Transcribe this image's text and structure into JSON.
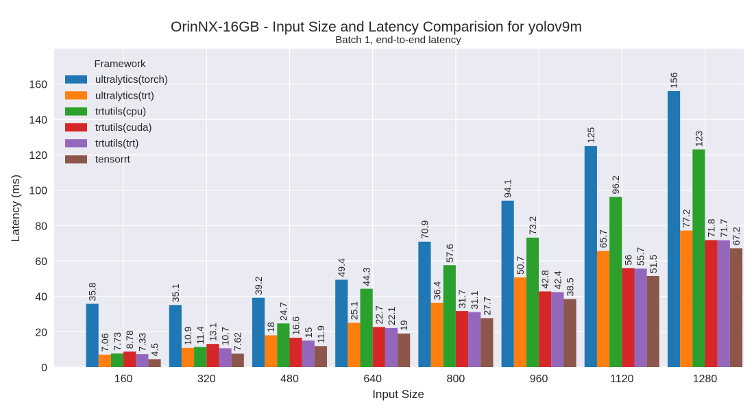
{
  "chart_data": {
    "type": "bar",
    "title": "OrinNX-16GB - Input Size and Latency Comparision for yolov9m",
    "subtitle": "Batch 1, end-to-end latency",
    "xlabel": "Input Size",
    "ylabel": "Latency (ms)",
    "ylim": [
      0,
      180
    ],
    "yticks": [
      0,
      20,
      40,
      60,
      80,
      100,
      120,
      140,
      160
    ],
    "grid": true,
    "legend": {
      "title": "Framework",
      "placement": "top-left"
    },
    "categories": [
      "160",
      "320",
      "480",
      "640",
      "800",
      "960",
      "1120",
      "1280"
    ],
    "series": [
      {
        "name": "ultralytics(torch)",
        "color": "#1f77b4",
        "values": [
          35.8,
          35.1,
          39.2,
          49.4,
          70.9,
          94.1,
          125,
          156
        ],
        "labels": [
          "35.8",
          "35.1",
          "39.2",
          "49.4",
          "70.9",
          "94.1",
          "125",
          "156"
        ]
      },
      {
        "name": "ultralytics(trt)",
        "color": "#ff7f0e",
        "values": [
          7.06,
          10.9,
          18,
          25.1,
          36.4,
          50.7,
          65.7,
          77.2
        ],
        "labels": [
          "7.06",
          "10.9",
          "18",
          "25.1",
          "36.4",
          "50.7",
          "65.7",
          "77.2"
        ]
      },
      {
        "name": "trtutils(cpu)",
        "color": "#2ca02c",
        "values": [
          7.73,
          11.4,
          24.7,
          44.3,
          57.6,
          73.2,
          96.2,
          123
        ],
        "labels": [
          "7.73",
          "11.4",
          "24.7",
          "44.3",
          "57.6",
          "73.2",
          "96.2",
          "123"
        ]
      },
      {
        "name": "trtutils(cuda)",
        "color": "#d62728",
        "values": [
          8.78,
          13.1,
          16.6,
          22.7,
          31.7,
          42.8,
          56,
          71.8
        ],
        "labels": [
          "8.78",
          "13.1",
          "16.6",
          "22.7",
          "31.7",
          "42.8",
          "56",
          "71.8"
        ]
      },
      {
        "name": "trtutils(trt)",
        "color": "#9467bd",
        "values": [
          7.33,
          10.7,
          15,
          22.1,
          31.1,
          42.4,
          55.7,
          71.7
        ],
        "labels": [
          "7.33",
          "10.7",
          "15",
          "22.1",
          "31.1",
          "42.4",
          "55.7",
          "71.7"
        ]
      },
      {
        "name": "tensorrt",
        "color": "#8c564b",
        "values": [
          4.5,
          7.62,
          11.9,
          19,
          27.7,
          38.5,
          51.5,
          67.2
        ],
        "labels": [
          "4.5",
          "7.62",
          "11.9",
          "19",
          "27.7",
          "38.5",
          "51.5",
          "67.2"
        ]
      }
    ]
  }
}
